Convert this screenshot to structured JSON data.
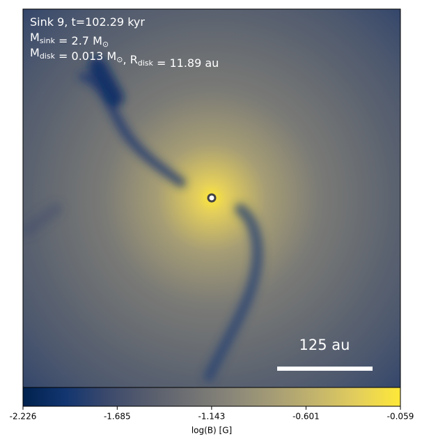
{
  "chart_data": {
    "type": "image",
    "annotations": [
      [
        {
          "text": "Sink 9, t=102.29 kyr"
        }
      ],
      [
        {
          "text": "M"
        },
        {
          "sub": "sink"
        },
        {
          "text": " = 2.7 M"
        },
        {
          "sub": "⊙"
        }
      ],
      [
        {
          "text": "M"
        },
        {
          "sub": "disk"
        },
        {
          "text": " = 0.013 M"
        },
        {
          "sub": "⊙"
        },
        {
          "text": ", R"
        },
        {
          "sub": "disk"
        },
        {
          "text": " = 11.89 au"
        }
      ]
    ],
    "scale_bar": "125 au",
    "colorbar": {
      "label": "log(B) [G]",
      "lim": [
        -2.226,
        -0.059
      ],
      "ticks": [
        -2.226,
        -1.685,
        -1.143,
        -0.601,
        -0.059
      ],
      "colors": [
        "#00224e",
        "#123570",
        "#3b496c",
        "#575d6d",
        "#707173",
        "#8a8779",
        "#a69d75",
        "#c4b56c",
        "#e4cf5b",
        "#fee838"
      ]
    }
  }
}
